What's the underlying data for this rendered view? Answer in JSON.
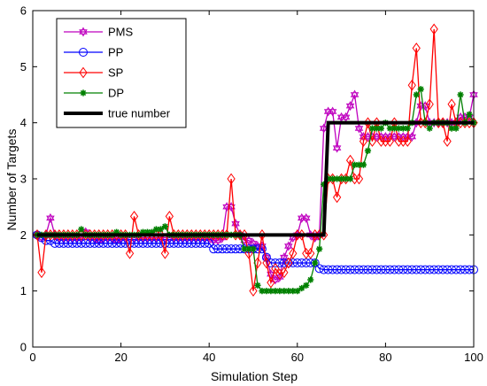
{
  "chart_data": {
    "type": "line",
    "title": "",
    "xlabel": "Simulation Step",
    "ylabel": "Number of Targets",
    "xlim": [
      0,
      100
    ],
    "ylim": [
      0,
      6
    ],
    "xticks": [
      0,
      20,
      40,
      60,
      80,
      100
    ],
    "yticks": [
      0,
      1,
      2,
      3,
      4,
      5,
      6
    ],
    "grid": false,
    "legend_position": "top-left",
    "series": [
      {
        "name": "PMS",
        "color": "#bf00bf",
        "marker": "hexagram",
        "x": [
          1,
          2,
          3,
          4,
          5,
          6,
          7,
          8,
          9,
          10,
          11,
          12,
          13,
          14,
          15,
          16,
          17,
          18,
          19,
          20,
          21,
          22,
          23,
          24,
          25,
          26,
          27,
          28,
          29,
          30,
          31,
          32,
          33,
          34,
          35,
          36,
          37,
          38,
          39,
          40,
          41,
          42,
          43,
          44,
          45,
          46,
          47,
          48,
          49,
          50,
          51,
          52,
          53,
          54,
          55,
          56,
          57,
          58,
          59,
          60,
          61,
          62,
          63,
          64,
          65,
          66,
          67,
          68,
          69,
          70,
          71,
          72,
          73,
          74,
          75,
          76,
          77,
          78,
          79,
          80,
          81,
          82,
          83,
          84,
          85,
          86,
          87,
          88,
          89,
          90,
          91,
          92,
          93,
          94,
          95,
          96,
          97,
          98,
          99,
          100
        ],
        "values": [
          2.0,
          1.95,
          2.0,
          2.3,
          2.0,
          1.95,
          1.95,
          1.95,
          1.95,
          1.95,
          1.95,
          2.05,
          1.95,
          1.95,
          1.9,
          1.95,
          1.95,
          1.95,
          1.9,
          1.95,
          1.95,
          1.95,
          1.95,
          1.95,
          1.95,
          1.95,
          1.95,
          1.95,
          1.95,
          1.95,
          1.95,
          1.95,
          1.95,
          1.95,
          1.95,
          1.95,
          1.95,
          1.95,
          1.95,
          1.95,
          1.9,
          1.9,
          1.95,
          2.5,
          2.5,
          2.2,
          2.0,
          1.9,
          1.9,
          1.85,
          1.8,
          1.8,
          1.6,
          1.3,
          1.2,
          1.25,
          1.6,
          1.8,
          1.95,
          2.0,
          2.3,
          2.3,
          2.0,
          1.95,
          2.0,
          3.9,
          4.2,
          4.2,
          3.55,
          4.1,
          4.1,
          4.3,
          4.5,
          3.9,
          3.75,
          3.75,
          3.75,
          3.75,
          3.75,
          3.75,
          3.75,
          3.75,
          3.75,
          3.75,
          3.75,
          3.75,
          4.0,
          4.3,
          4.3,
          4.0,
          4.0,
          4.0,
          4.0,
          4.0,
          4.0,
          4.0,
          4.1,
          4.1,
          4.1,
          4.5
        ]
      },
      {
        "name": "PP",
        "color": "#0000ff",
        "marker": "circle",
        "x": [
          1,
          2,
          3,
          4,
          5,
          6,
          7,
          8,
          9,
          10,
          11,
          12,
          13,
          14,
          15,
          16,
          17,
          18,
          19,
          20,
          21,
          22,
          23,
          24,
          25,
          26,
          27,
          28,
          29,
          30,
          31,
          32,
          33,
          34,
          35,
          36,
          37,
          38,
          39,
          40,
          41,
          42,
          43,
          44,
          45,
          46,
          47,
          48,
          49,
          50,
          51,
          52,
          53,
          54,
          55,
          56,
          57,
          58,
          59,
          60,
          61,
          62,
          63,
          64,
          65,
          66,
          67,
          68,
          69,
          70,
          71,
          72,
          73,
          74,
          75,
          76,
          77,
          78,
          79,
          80,
          81,
          82,
          83,
          84,
          85,
          86,
          87,
          88,
          89,
          90,
          91,
          92,
          93,
          94,
          95,
          96,
          97,
          98,
          99,
          100
        ],
        "values": [
          2.0,
          1.95,
          1.9,
          1.9,
          1.85,
          1.85,
          1.85,
          1.85,
          1.85,
          1.85,
          1.85,
          1.85,
          1.85,
          1.85,
          1.85,
          1.85,
          1.85,
          1.85,
          1.85,
          1.85,
          1.85,
          1.85,
          1.85,
          1.85,
          1.85,
          1.85,
          1.85,
          1.85,
          1.85,
          1.85,
          1.85,
          1.85,
          1.85,
          1.85,
          1.85,
          1.85,
          1.85,
          1.85,
          1.85,
          1.85,
          1.75,
          1.75,
          1.75,
          1.75,
          1.75,
          1.75,
          1.75,
          1.75,
          1.75,
          1.75,
          1.75,
          1.75,
          1.6,
          1.5,
          1.5,
          1.5,
          1.5,
          1.5,
          1.5,
          1.5,
          1.5,
          1.5,
          1.5,
          1.5,
          1.4,
          1.38,
          1.38,
          1.38,
          1.38,
          1.38,
          1.38,
          1.38,
          1.38,
          1.38,
          1.38,
          1.38,
          1.38,
          1.38,
          1.38,
          1.38,
          1.38,
          1.38,
          1.38,
          1.38,
          1.38,
          1.38,
          1.38,
          1.38,
          1.38,
          1.38,
          1.38,
          1.38,
          1.38,
          1.38,
          1.38,
          1.38,
          1.38,
          1.38,
          1.38,
          1.38
        ]
      },
      {
        "name": "SP",
        "color": "#ff0000",
        "marker": "diamond",
        "x": [
          1,
          2,
          3,
          4,
          5,
          6,
          7,
          8,
          9,
          10,
          11,
          12,
          13,
          14,
          15,
          16,
          17,
          18,
          19,
          20,
          21,
          22,
          23,
          24,
          25,
          26,
          27,
          28,
          29,
          30,
          31,
          32,
          33,
          34,
          35,
          36,
          37,
          38,
          39,
          40,
          41,
          42,
          43,
          44,
          45,
          46,
          47,
          48,
          49,
          50,
          51,
          52,
          53,
          54,
          55,
          56,
          57,
          58,
          59,
          60,
          61,
          62,
          63,
          64,
          65,
          66,
          67,
          68,
          69,
          70,
          71,
          72,
          73,
          74,
          75,
          76,
          77,
          78,
          79,
          80,
          81,
          82,
          83,
          84,
          85,
          86,
          87,
          88,
          89,
          90,
          91,
          92,
          93,
          94,
          95,
          96,
          97,
          98,
          99,
          100
        ],
        "values": [
          2.0,
          1.33,
          2.0,
          2.0,
          2.0,
          2.0,
          2.0,
          2.0,
          2.0,
          2.0,
          2.0,
          2.0,
          2.0,
          2.0,
          2.0,
          2.0,
          2.0,
          2.0,
          2.0,
          2.0,
          2.0,
          1.67,
          2.33,
          2.0,
          2.0,
          2.0,
          2.0,
          2.0,
          2.0,
          1.67,
          2.33,
          2.0,
          2.0,
          2.0,
          2.0,
          2.0,
          2.0,
          2.0,
          2.0,
          2.0,
          2.0,
          2.0,
          2.0,
          2.0,
          3.0,
          2.0,
          2.0,
          2.0,
          1.67,
          1.0,
          1.5,
          2.0,
          1.5,
          1.15,
          1.4,
          1.3,
          1.33,
          1.5,
          1.67,
          2.0,
          2.0,
          1.67,
          1.67,
          2.0,
          2.0,
          2.0,
          3.0,
          3.0,
          2.67,
          3.0,
          3.0,
          3.33,
          3.0,
          3.0,
          3.67,
          4.0,
          3.67,
          4.0,
          3.67,
          3.67,
          3.67,
          4.0,
          3.67,
          3.67,
          3.67,
          4.67,
          5.33,
          4.0,
          4.0,
          4.33,
          5.67,
          4.0,
          4.0,
          3.67,
          4.33,
          4.0,
          4.0,
          4.0,
          4.0,
          4.0
        ]
      },
      {
        "name": "DP",
        "color": "#008000",
        "marker": "asterisk",
        "x": [
          1,
          2,
          3,
          4,
          5,
          6,
          7,
          8,
          9,
          10,
          11,
          12,
          13,
          14,
          15,
          16,
          17,
          18,
          19,
          20,
          21,
          22,
          23,
          24,
          25,
          26,
          27,
          28,
          29,
          30,
          31,
          32,
          33,
          34,
          35,
          36,
          37,
          38,
          39,
          40,
          41,
          42,
          43,
          44,
          45,
          46,
          47,
          48,
          49,
          50,
          51,
          52,
          53,
          54,
          55,
          56,
          57,
          58,
          59,
          60,
          61,
          62,
          63,
          64,
          65,
          66,
          67,
          68,
          69,
          70,
          71,
          72,
          73,
          74,
          75,
          76,
          77,
          78,
          79,
          80,
          81,
          82,
          83,
          84,
          85,
          86,
          87,
          88,
          89,
          90,
          91,
          92,
          93,
          94,
          95,
          96,
          97,
          98,
          99,
          100
        ],
        "values": [
          2.0,
          2.0,
          2.0,
          2.0,
          2.0,
          2.0,
          2.0,
          2.0,
          2.0,
          2.0,
          2.1,
          2.0,
          2.0,
          2.0,
          2.0,
          2.0,
          2.0,
          2.0,
          2.05,
          2.0,
          2.0,
          2.0,
          2.0,
          2.0,
          2.05,
          2.05,
          2.05,
          2.1,
          2.1,
          2.15,
          2.0,
          2.0,
          2.0,
          2.0,
          2.0,
          2.0,
          2.0,
          2.0,
          2.0,
          2.0,
          2.0,
          2.0,
          2.0,
          2.0,
          2.0,
          2.0,
          2.0,
          1.75,
          1.75,
          1.75,
          1.1,
          1.0,
          1.0,
          1.0,
          1.0,
          1.0,
          1.0,
          1.0,
          1.0,
          1.0,
          1.05,
          1.1,
          1.2,
          1.5,
          1.75,
          2.9,
          3.0,
          3.0,
          3.0,
          3.0,
          3.0,
          3.0,
          3.25,
          3.25,
          3.25,
          3.5,
          3.9,
          3.9,
          3.9,
          4.0,
          3.9,
          3.9,
          3.9,
          3.9,
          3.9,
          4.0,
          4.5,
          4.6,
          4.0,
          3.9,
          4.0,
          4.0,
          4.0,
          4.0,
          3.9,
          3.9,
          4.5,
          4.0,
          4.15,
          4.0
        ]
      },
      {
        "name": "true number",
        "color": "#000000",
        "marker": "none",
        "x": [
          1,
          66,
          66,
          67,
          100
        ],
        "values": [
          2,
          2,
          2,
          4,
          4
        ]
      }
    ]
  }
}
